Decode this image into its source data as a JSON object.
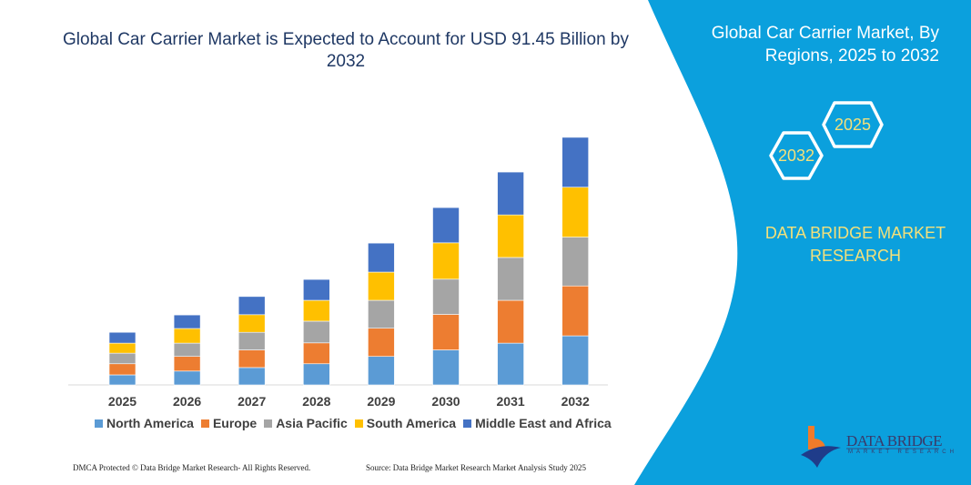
{
  "title": "Global Car Carrier Market is Expected to Account for USD 91.45 Billion by 2032",
  "side_panel": {
    "title": "Global Car Carrier Market, By Regions, 2025 to 2032",
    "hex_2025": "2025",
    "hex_2032": "2032",
    "brand": "DATA BRIDGE MARKET RESEARCH",
    "logo_text": "DATA BRIDGE",
    "logo_subtext": "MARKET RESEARCH",
    "color": "#0ba0dd"
  },
  "footer": {
    "left": "DMCA Protected © Data Bridge Market Research- All Rights Reserved.",
    "right": "Source: Data Bridge Market Research Market Analysis Study 2025"
  },
  "chart_data": {
    "type": "bar",
    "stacked": true,
    "title": "Global Car Carrier Market is Expected to Account for USD 91.45 Billion by 2032",
    "xlabel": "",
    "ylabel": "",
    "y_axis_shown": false,
    "grid": false,
    "legend_position": "bottom",
    "categories": [
      "2025",
      "2026",
      "2027",
      "2028",
      "2029",
      "2030",
      "2031",
      "2032"
    ],
    "series": [
      {
        "name": "North America",
        "color": "#5b9bd5",
        "values": [
          3.7,
          5.1,
          6.4,
          7.8,
          10.5,
          12.9,
          15.4,
          18.1
        ]
      },
      {
        "name": "Europe",
        "color": "#ed7d31",
        "values": [
          4.1,
          5.4,
          6.5,
          7.7,
          10.4,
          13.1,
          15.8,
          18.4
        ]
      },
      {
        "name": "Asia Pacific",
        "color": "#a5a5a5",
        "values": [
          3.9,
          4.9,
          6.5,
          8.0,
          10.3,
          13.0,
          15.8,
          18.0
        ]
      },
      {
        "name": "South America",
        "color": "#ffc000",
        "values": [
          3.7,
          5.4,
          6.5,
          7.7,
          10.4,
          13.4,
          15.7,
          18.4
        ]
      },
      {
        "name": "Middle East and Africa",
        "color": "#4472c4",
        "values": [
          4.0,
          5.0,
          6.7,
          7.7,
          10.7,
          13.0,
          15.8,
          18.4
        ]
      }
    ]
  }
}
